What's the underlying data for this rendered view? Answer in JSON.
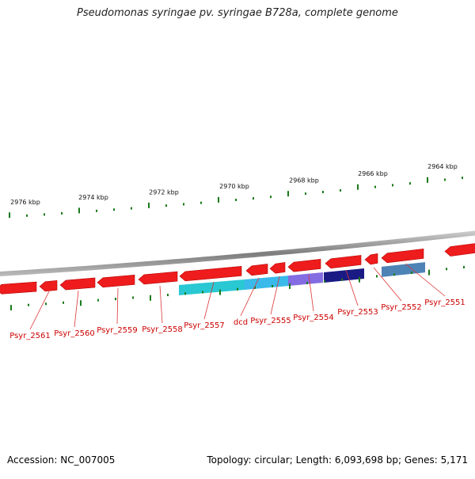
{
  "title": "Pseudomonas syringae pv. syringae B728a, complete genome",
  "footer": {
    "accession": "Accession: NC_007005",
    "summary": "Topology: circular; Length: 6,093,698 bp; Genes: 5,171"
  },
  "colors": {
    "forward_gene": "#ee1c1c",
    "backbone": "#8a8a8a",
    "tick": "#1a7a1a",
    "label": "#cc0000",
    "leader": "#dd3333"
  },
  "ruler_labels": [
    "2976 kbp",
    "2974 kbp",
    "2972 kbp",
    "2970 kbp",
    "2968 kbp",
    "2966 kbp",
    "2964 kbp"
  ],
  "genes": [
    {
      "name": "Psyr_2561",
      "color": "#ee1c1c"
    },
    {
      "name": "Psyr_2560",
      "color": "#ee1c1c"
    },
    {
      "name": "Psyr_2559",
      "color": "#ee1c1c"
    },
    {
      "name": "Psyr_2558",
      "color": "#ee1c1c"
    },
    {
      "name": "Psyr_2557",
      "color": "#ee1c1c"
    },
    {
      "name": "dcd",
      "color": "#ee1c1c"
    },
    {
      "name": "Psyr_2555",
      "color": "#ee1c1c"
    },
    {
      "name": "Psyr_2554",
      "color": "#ee1c1c"
    },
    {
      "name": "Psyr_2553",
      "color": "#ee1c1c"
    },
    {
      "name": "Psyr_2552",
      "color": "#ee1c1c"
    },
    {
      "name": "Psyr_2551",
      "color": "#ee1c1c"
    }
  ],
  "feature_bars": [
    {
      "color": "#17c3cf"
    },
    {
      "color": "#29b4e8"
    },
    {
      "color": "#7a5fe0"
    },
    {
      "color": "#06067a"
    },
    {
      "color": "#3f78b0"
    }
  ]
}
